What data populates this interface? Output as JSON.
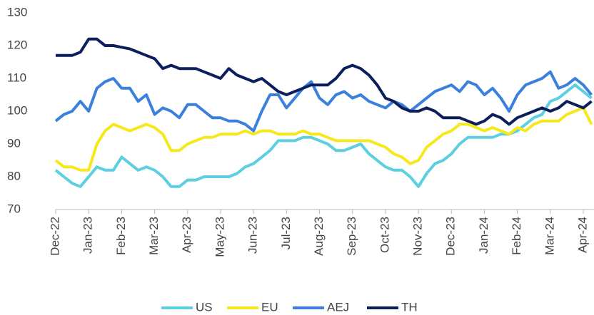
{
  "chart_data": {
    "type": "line",
    "categories": [
      "Dec-22",
      null,
      null,
      null,
      "Jan-23",
      null,
      null,
      null,
      "Feb-23",
      null,
      null,
      null,
      "Mar-23",
      null,
      null,
      null,
      "Apr-23",
      null,
      null,
      null,
      "May-23",
      null,
      null,
      null,
      "Jun-23",
      null,
      null,
      null,
      "Jul-23",
      null,
      null,
      null,
      "Aug-23",
      null,
      null,
      null,
      "Sep-23",
      null,
      null,
      null,
      "Oct-23",
      null,
      null,
      null,
      "Nov-23",
      null,
      null,
      null,
      "Dec-23",
      null,
      null,
      null,
      "Jan-24",
      null,
      null,
      null,
      "Feb-24",
      null,
      null,
      null,
      "Mar-24",
      null,
      null,
      null,
      "Apr-24",
      null
    ],
    "series": [
      {
        "name": "US",
        "color": "#5ccfe0",
        "values": [
          82,
          80,
          78,
          77,
          80,
          83,
          82,
          82,
          86,
          84,
          82,
          83,
          82,
          80,
          77,
          77,
          79,
          79,
          80,
          80,
          80,
          80,
          81,
          83,
          84,
          86,
          88,
          91,
          91,
          91,
          92,
          92,
          91,
          90,
          88,
          88,
          89,
          90,
          87,
          85,
          83,
          82,
          82,
          80,
          77,
          81,
          84,
          85,
          87,
          90,
          92,
          92,
          92,
          92,
          93,
          93,
          94,
          96,
          98,
          99,
          103,
          104,
          106,
          108,
          106,
          104
        ]
      },
      {
        "name": "EU",
        "color": "#f6e81c",
        "values": [
          85,
          83,
          83,
          82,
          82,
          90,
          94,
          96,
          95,
          94,
          95,
          96,
          95,
          93,
          88,
          88,
          90,
          91,
          92,
          92,
          93,
          93,
          93,
          94,
          93,
          94,
          94,
          93,
          93,
          93,
          94,
          93,
          93,
          92,
          91,
          91,
          91,
          91,
          91,
          90,
          89,
          87,
          86,
          84,
          85,
          89,
          91,
          93,
          94,
          96,
          96,
          95,
          94,
          95,
          94,
          93,
          95,
          94,
          96,
          97,
          97,
          97,
          99,
          100,
          101,
          96
        ]
      },
      {
        "name": "AEJ",
        "color": "#3b80dc",
        "values": [
          97,
          99,
          100,
          103,
          100,
          107,
          109,
          110,
          107,
          107,
          103,
          105,
          99,
          101,
          100,
          98,
          102,
          102,
          100,
          98,
          98,
          97,
          97,
          96,
          94,
          100,
          105,
          105,
          101,
          104,
          107,
          109,
          104,
          102,
          105,
          106,
          104,
          105,
          103,
          102,
          101,
          103,
          102,
          100,
          102,
          104,
          106,
          107,
          108,
          106,
          109,
          108,
          105,
          107,
          104,
          100,
          105,
          108,
          109,
          110,
          112,
          107,
          108,
          110,
          108,
          105
        ]
      },
      {
        "name": "TH",
        "color": "#0c1f5c",
        "values": [
          117,
          117,
          117,
          118,
          122,
          122,
          120,
          120,
          119.5,
          119,
          118,
          117,
          116,
          113,
          114,
          113,
          113,
          113,
          112,
          111,
          110,
          113,
          111,
          110,
          109,
          110,
          108,
          106,
          105,
          106,
          107,
          108,
          108,
          108,
          110,
          113,
          114,
          113,
          111,
          108,
          104,
          103,
          101,
          100,
          100,
          101,
          100,
          98,
          98,
          98,
          97,
          96,
          97,
          99,
          98,
          96,
          98,
          99,
          100,
          101,
          100,
          101,
          103,
          102,
          101,
          103
        ]
      }
    ],
    "ylim": [
      70,
      130
    ],
    "yticks": [
      70,
      80,
      90,
      100,
      110,
      120,
      130
    ]
  }
}
